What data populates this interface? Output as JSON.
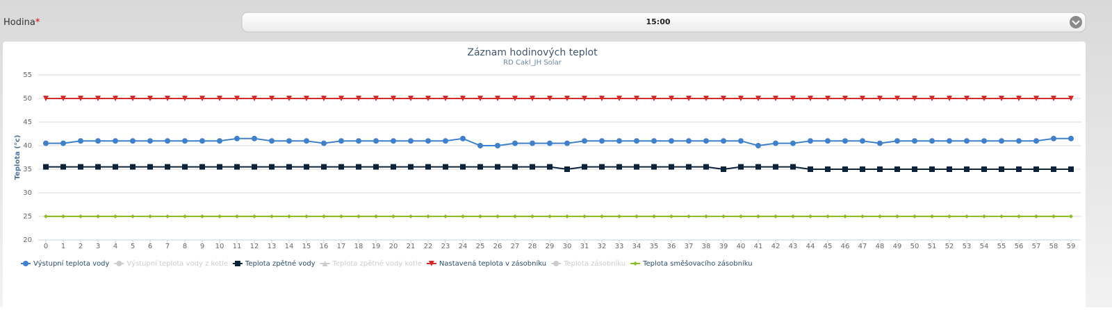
{
  "form": {
    "label": "Hodina",
    "required": "*",
    "selected": "15:00"
  },
  "chart_data": {
    "type": "line",
    "title": "Záznam hodinových teplot",
    "subtitle": "RD Cakl_JH Solar",
    "y_label": "Teplota (°c)",
    "categories": [
      0,
      1,
      2,
      3,
      4,
      5,
      6,
      7,
      8,
      9,
      10,
      11,
      12,
      13,
      14,
      15,
      16,
      17,
      18,
      19,
      20,
      21,
      22,
      23,
      24,
      25,
      26,
      27,
      28,
      29,
      30,
      31,
      32,
      33,
      34,
      35,
      36,
      37,
      38,
      39,
      40,
      41,
      42,
      43,
      44,
      45,
      46,
      47,
      48,
      49,
      50,
      51,
      52,
      53,
      54,
      55,
      56,
      57,
      58,
      59
    ],
    "ylim": [
      20,
      55
    ],
    "yticks": [
      20,
      25,
      30,
      35,
      40,
      45,
      50,
      55
    ],
    "grid": true,
    "series": [
      {
        "name": "Výstupní teplota vody",
        "color": "#3f80cc",
        "marker": "circle",
        "hidden": false,
        "values": [
          40.5,
          40.5,
          41,
          41,
          41,
          41,
          41,
          41,
          41,
          41,
          41,
          41.5,
          41.5,
          41,
          41,
          41,
          40.5,
          41,
          41,
          41,
          41,
          41,
          41,
          41,
          41.5,
          40,
          40,
          40.5,
          40.5,
          40.5,
          40.5,
          41,
          41,
          41,
          41,
          41,
          41,
          41,
          41,
          41,
          41,
          40,
          40.5,
          40.5,
          41,
          41,
          41,
          41,
          40.5,
          41,
          41,
          41,
          41,
          41,
          41,
          41,
          41,
          41,
          41.5,
          41.5
        ]
      },
      {
        "name": "Výstupní teplota vody z kotle",
        "color": "#cccccc",
        "marker": "circle",
        "hidden": true,
        "values": [
          null,
          null,
          null,
          null,
          null,
          null,
          null,
          null,
          null,
          null,
          null,
          null,
          null,
          null,
          null,
          null,
          null,
          null,
          null,
          null,
          null,
          null,
          null,
          null,
          null,
          null,
          null,
          null,
          null,
          null,
          null,
          null,
          null,
          null,
          null,
          null,
          null,
          null,
          null,
          null,
          null,
          null,
          null,
          null,
          null,
          null,
          null,
          null,
          null,
          null,
          null,
          null,
          null,
          null,
          null,
          null,
          null,
          null,
          null,
          null
        ]
      },
      {
        "name": "Teplota zpětné vody",
        "color": "#0d233a",
        "marker": "square",
        "hidden": false,
        "values": [
          35.5,
          35.5,
          35.5,
          35.5,
          35.5,
          35.5,
          35.5,
          35.5,
          35.5,
          35.5,
          35.5,
          35.5,
          35.5,
          35.5,
          35.5,
          35.5,
          35.5,
          35.5,
          35.5,
          35.5,
          35.5,
          35.5,
          35.5,
          35.5,
          35.5,
          35.5,
          35.5,
          35.5,
          35.5,
          35.5,
          35,
          35.5,
          35.5,
          35.5,
          35.5,
          35.5,
          35.5,
          35.5,
          35.5,
          35,
          35.5,
          35.5,
          35.5,
          35.5,
          35,
          35,
          35,
          35,
          35,
          35,
          35,
          35,
          35,
          35,
          35,
          35,
          35,
          35,
          35,
          35
        ]
      },
      {
        "name": "Teplota zpětné vody kotle",
        "color": "#cccccc",
        "marker": "triangle",
        "hidden": true,
        "values": [
          null,
          null,
          null,
          null,
          null,
          null,
          null,
          null,
          null,
          null,
          null,
          null,
          null,
          null,
          null,
          null,
          null,
          null,
          null,
          null,
          null,
          null,
          null,
          null,
          null,
          null,
          null,
          null,
          null,
          null,
          null,
          null,
          null,
          null,
          null,
          null,
          null,
          null,
          null,
          null,
          null,
          null,
          null,
          null,
          null,
          null,
          null,
          null,
          null,
          null,
          null,
          null,
          null,
          null,
          null,
          null,
          null,
          null,
          null,
          null
        ]
      },
      {
        "name": "Nastavená teplota v zásobníku",
        "color": "#d42a2a",
        "marker": "triangle-down",
        "hidden": false,
        "values": [
          50,
          50,
          50,
          50,
          50,
          50,
          50,
          50,
          50,
          50,
          50,
          50,
          50,
          50,
          50,
          50,
          50,
          50,
          50,
          50,
          50,
          50,
          50,
          50,
          50,
          50,
          50,
          50,
          50,
          50,
          50,
          50,
          50,
          50,
          50,
          50,
          50,
          50,
          50,
          50,
          50,
          50,
          50,
          50,
          50,
          50,
          50,
          50,
          50,
          50,
          50,
          50,
          50,
          50,
          50,
          50,
          50,
          50,
          50,
          50
        ]
      },
      {
        "name": "Teplota zásobníku",
        "color": "#cccccc",
        "marker": "circle",
        "hidden": true,
        "values": [
          null,
          null,
          null,
          null,
          null,
          null,
          null,
          null,
          null,
          null,
          null,
          null,
          null,
          null,
          null,
          null,
          null,
          null,
          null,
          null,
          null,
          null,
          null,
          null,
          null,
          null,
          null,
          null,
          null,
          null,
          null,
          null,
          null,
          null,
          null,
          null,
          null,
          null,
          null,
          null,
          null,
          null,
          null,
          null,
          null,
          null,
          null,
          null,
          null,
          null,
          null,
          null,
          null,
          null,
          null,
          null,
          null,
          null,
          null,
          null
        ]
      },
      {
        "name": "Teplota směšovacího zásobníku",
        "color": "#8bbc21",
        "marker": "diamond",
        "hidden": false,
        "values": [
          25,
          25,
          25,
          25,
          25,
          25,
          25,
          25,
          25,
          25,
          25,
          25,
          25,
          25,
          25,
          25,
          25,
          25,
          25,
          25,
          25,
          25,
          25,
          25,
          25,
          25,
          25,
          25,
          25,
          25,
          25,
          25,
          25,
          25,
          25,
          25,
          25,
          25,
          25,
          25,
          25,
          25,
          25,
          25,
          25,
          25,
          25,
          25,
          25,
          25,
          25,
          25,
          25,
          25,
          25,
          25,
          25,
          25,
          25,
          25
        ]
      }
    ]
  }
}
